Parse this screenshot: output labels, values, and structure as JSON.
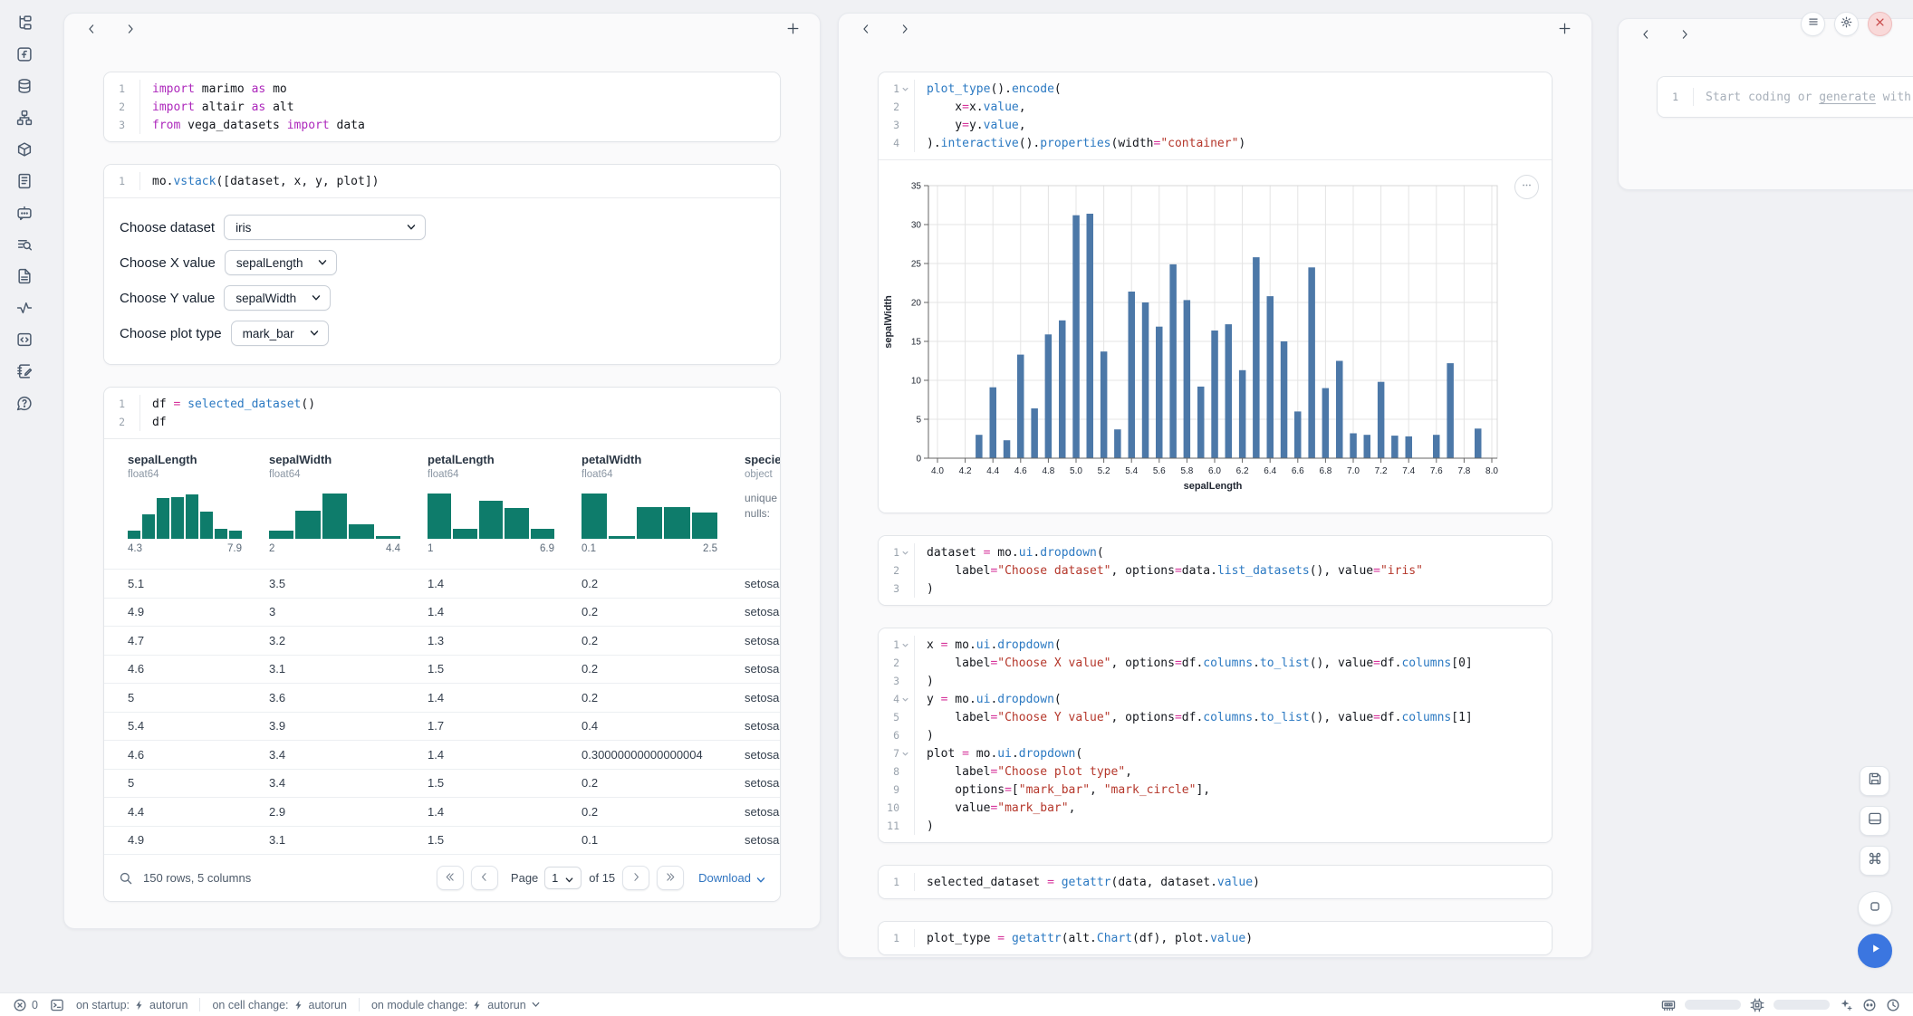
{
  "colors": {
    "accent_blue": "#2b79c2",
    "keyword_purple": "#ad28bc",
    "operator_pink": "#d6359b",
    "string_red": "#b5372b",
    "hist_teal": "#0e7c6b",
    "bar_blue": "#4c78a8",
    "link_blue": "#2f74c0",
    "meter_blue": "#2166e8",
    "close_red": "#c84848"
  },
  "sidebar": {
    "items": [
      {
        "name": "file-explorer",
        "icon": "tree"
      },
      {
        "name": "variables",
        "icon": "function"
      },
      {
        "name": "data-sources",
        "icon": "database"
      },
      {
        "name": "dependency-graph",
        "icon": "network"
      },
      {
        "name": "packages",
        "icon": "package"
      },
      {
        "name": "logs",
        "icon": "logs"
      },
      {
        "name": "ai-chat",
        "icon": "chat-bot"
      },
      {
        "name": "outline",
        "icon": "list-search"
      },
      {
        "name": "documentation",
        "icon": "file-text"
      },
      {
        "name": "tracing",
        "icon": "activity"
      },
      {
        "name": "snippets",
        "icon": "code-square"
      },
      {
        "name": "scratchpad",
        "icon": "notebook-pen"
      },
      {
        "name": "help",
        "icon": "help-circle"
      }
    ]
  },
  "cells": {
    "imports": {
      "folds": [],
      "lines": [
        [
          [
            "import",
            "kw"
          ],
          [
            " marimo ",
            "pl"
          ],
          [
            "as",
            "kw"
          ],
          [
            " mo",
            "pl"
          ]
        ],
        [
          [
            "import",
            "kw"
          ],
          [
            " altair ",
            "pl"
          ],
          [
            "as",
            "kw"
          ],
          [
            " alt",
            "pl"
          ]
        ],
        [
          [
            "from",
            "kw"
          ],
          [
            " vega_datasets ",
            "pl"
          ],
          [
            "import",
            "kw"
          ],
          [
            " data",
            "pl"
          ]
        ]
      ]
    },
    "vstack": {
      "folds": [],
      "lines": [
        [
          [
            "mo.",
            "pl"
          ],
          [
            "vstack",
            "fn"
          ],
          [
            "([dataset, x, y, plot])",
            "pl"
          ]
        ]
      ]
    },
    "df": {
      "folds": [],
      "lines": [
        [
          [
            "df ",
            "pl"
          ],
          [
            "=",
            "op"
          ],
          [
            " ",
            "pl"
          ],
          [
            "selected_dataset",
            "fn"
          ],
          [
            "()",
            "pl"
          ]
        ],
        [
          [
            "df",
            "pl"
          ]
        ]
      ]
    },
    "plot_cell": {
      "folds": [
        1
      ],
      "lines": [
        [
          [
            "plot_type",
            "fn"
          ],
          [
            "().",
            "pl"
          ],
          [
            "encode",
            "fn"
          ],
          [
            "(",
            "pl"
          ]
        ],
        [
          [
            "    x",
            "pl"
          ],
          [
            "=",
            "op"
          ],
          [
            "x.",
            "pl"
          ],
          [
            "value",
            "fn"
          ],
          [
            ",",
            "pl"
          ]
        ],
        [
          [
            "    y",
            "pl"
          ],
          [
            "=",
            "op"
          ],
          [
            "y.",
            "pl"
          ],
          [
            "value",
            "fn"
          ],
          [
            ",",
            "pl"
          ]
        ],
        [
          [
            ").",
            "pl"
          ],
          [
            "interactive",
            "fn"
          ],
          [
            "().",
            "pl"
          ],
          [
            "properties",
            "fn"
          ],
          [
            "(width",
            "pl"
          ],
          [
            "=",
            "op"
          ],
          [
            "\"container\"",
            "str"
          ],
          [
            ")",
            "pl"
          ]
        ]
      ]
    },
    "dataset_cell": {
      "folds": [
        1
      ],
      "lines": [
        [
          [
            "dataset ",
            "pl"
          ],
          [
            "=",
            "op"
          ],
          [
            " mo.",
            "pl"
          ],
          [
            "ui",
            "fn"
          ],
          [
            ".",
            "pl"
          ],
          [
            "dropdown",
            "fn"
          ],
          [
            "(",
            "pl"
          ]
        ],
        [
          [
            "    label",
            "pl"
          ],
          [
            "=",
            "op"
          ],
          [
            "\"Choose dataset\"",
            "str"
          ],
          [
            ", options",
            "pl"
          ],
          [
            "=",
            "op"
          ],
          [
            "data.",
            "pl"
          ],
          [
            "list_datasets",
            "fn"
          ],
          [
            "(), value",
            "pl"
          ],
          [
            "=",
            "op"
          ],
          [
            "\"iris\"",
            "str"
          ]
        ],
        [
          [
            ")",
            "pl"
          ]
        ]
      ]
    },
    "controls_cell": {
      "folds": [
        1,
        4,
        7
      ],
      "lines": [
        [
          [
            "x ",
            "pl"
          ],
          [
            "=",
            "op"
          ],
          [
            " mo.",
            "pl"
          ],
          [
            "ui",
            "fn"
          ],
          [
            ".",
            "pl"
          ],
          [
            "dropdown",
            "fn"
          ],
          [
            "(",
            "pl"
          ]
        ],
        [
          [
            "    label",
            "pl"
          ],
          [
            "=",
            "op"
          ],
          [
            "\"Choose X value\"",
            "str"
          ],
          [
            ", options",
            "pl"
          ],
          [
            "=",
            "op"
          ],
          [
            "df.",
            "pl"
          ],
          [
            "columns",
            "fn"
          ],
          [
            ".",
            "pl"
          ],
          [
            "to_list",
            "fn"
          ],
          [
            "(), value",
            "pl"
          ],
          [
            "=",
            "op"
          ],
          [
            "df.",
            "pl"
          ],
          [
            "columns",
            "fn"
          ],
          [
            "[0]",
            "pl"
          ]
        ],
        [
          [
            ")",
            "pl"
          ]
        ],
        [
          [
            "y ",
            "pl"
          ],
          [
            "=",
            "op"
          ],
          [
            " mo.",
            "pl"
          ],
          [
            "ui",
            "fn"
          ],
          [
            ".",
            "pl"
          ],
          [
            "dropdown",
            "fn"
          ],
          [
            "(",
            "pl"
          ]
        ],
        [
          [
            "    label",
            "pl"
          ],
          [
            "=",
            "op"
          ],
          [
            "\"Choose Y value\"",
            "str"
          ],
          [
            ", options",
            "pl"
          ],
          [
            "=",
            "op"
          ],
          [
            "df.",
            "pl"
          ],
          [
            "columns",
            "fn"
          ],
          [
            ".",
            "pl"
          ],
          [
            "to_list",
            "fn"
          ],
          [
            "(), value",
            "pl"
          ],
          [
            "=",
            "op"
          ],
          [
            "df.",
            "pl"
          ],
          [
            "columns",
            "fn"
          ],
          [
            "[1]",
            "pl"
          ]
        ],
        [
          [
            ")",
            "pl"
          ]
        ],
        [
          [
            "plot ",
            "pl"
          ],
          [
            "=",
            "op"
          ],
          [
            " mo.",
            "pl"
          ],
          [
            "ui",
            "fn"
          ],
          [
            ".",
            "pl"
          ],
          [
            "dropdown",
            "fn"
          ],
          [
            "(",
            "pl"
          ]
        ],
        [
          [
            "    label",
            "pl"
          ],
          [
            "=",
            "op"
          ],
          [
            "\"Choose plot type\"",
            "str"
          ],
          [
            ",",
            "pl"
          ]
        ],
        [
          [
            "    options",
            "pl"
          ],
          [
            "=",
            "op"
          ],
          [
            "[",
            "pl"
          ],
          [
            "\"mark_bar\"",
            "str"
          ],
          [
            ", ",
            "pl"
          ],
          [
            "\"mark_circle\"",
            "str"
          ],
          [
            "],",
            "pl"
          ]
        ],
        [
          [
            "    value",
            "pl"
          ],
          [
            "=",
            "op"
          ],
          [
            "\"mark_bar\"",
            "str"
          ],
          [
            ",",
            "pl"
          ]
        ],
        [
          [
            ")",
            "pl"
          ]
        ]
      ]
    },
    "selected_cell": {
      "folds": [],
      "lines": [
        [
          [
            "selected_dataset ",
            "pl"
          ],
          [
            "=",
            "op"
          ],
          [
            " ",
            "pl"
          ],
          [
            "getattr",
            "fn"
          ],
          [
            "(data, dataset.",
            "pl"
          ],
          [
            "value",
            "fn"
          ],
          [
            ")",
            "pl"
          ]
        ]
      ]
    },
    "plot_type_cell": {
      "folds": [],
      "lines": [
        [
          [
            "plot_type ",
            "pl"
          ],
          [
            "=",
            "op"
          ],
          [
            " ",
            "pl"
          ],
          [
            "getattr",
            "fn"
          ],
          [
            "(alt.",
            "pl"
          ],
          [
            "Chart",
            "fn"
          ],
          [
            "(df), plot.",
            "pl"
          ],
          [
            "value",
            "fn"
          ],
          [
            ")",
            "pl"
          ]
        ]
      ]
    }
  },
  "dropdown_controls": [
    {
      "label": "Choose dataset",
      "value": "iris",
      "wide": true
    },
    {
      "label": "Choose X value",
      "value": "sepalLength",
      "wide": false
    },
    {
      "label": "Choose Y value",
      "value": "sepalWidth",
      "wide": false
    },
    {
      "label": "Choose plot type",
      "value": "mark_bar",
      "wide": false
    }
  ],
  "table": {
    "columns": [
      {
        "name": "sepalLength",
        "dtype": "float64",
        "hist": [
          0.16,
          0.5,
          0.84,
          0.86,
          0.9,
          0.56,
          0.2,
          0.17
        ],
        "min": "4.3",
        "max": "7.9"
      },
      {
        "name": "sepalWidth",
        "dtype": "float64",
        "hist": [
          0.16,
          0.58,
          0.92,
          0.3,
          0.06
        ],
        "min": "2",
        "max": "4.4"
      },
      {
        "name": "petalLength",
        "dtype": "float64",
        "hist": [
          0.93,
          0.2,
          0.77,
          0.63,
          0.2
        ],
        "min": "1",
        "max": "6.9"
      },
      {
        "name": "petalWidth",
        "dtype": "float64",
        "hist": [
          0.92,
          0.05,
          0.65,
          0.64,
          0.54
        ],
        "min": "0.1",
        "max": "2.5"
      },
      {
        "name": "species",
        "dtype": "object",
        "meta": [
          "unique",
          "nulls:"
        ]
      }
    ],
    "rows": [
      [
        "5.1",
        "3.5",
        "1.4",
        "0.2",
        "setosa"
      ],
      [
        "4.9",
        "3",
        "1.4",
        "0.2",
        "setosa"
      ],
      [
        "4.7",
        "3.2",
        "1.3",
        "0.2",
        "setosa"
      ],
      [
        "4.6",
        "3.1",
        "1.5",
        "0.2",
        "setosa"
      ],
      [
        "5",
        "3.6",
        "1.4",
        "0.2",
        "setosa"
      ],
      [
        "5.4",
        "3.9",
        "1.7",
        "0.4",
        "setosa"
      ],
      [
        "4.6",
        "3.4",
        "1.4",
        "0.30000000000000004",
        "setosa"
      ],
      [
        "5",
        "3.4",
        "1.5",
        "0.2",
        "setosa"
      ],
      [
        "4.4",
        "2.9",
        "1.4",
        "0.2",
        "setosa"
      ],
      [
        "4.9",
        "3.1",
        "1.5",
        "0.1",
        "setosa"
      ]
    ],
    "footer": {
      "summary": "150 rows, 5 columns",
      "page_label": "Page",
      "page_value": "1",
      "of_label": "of 15",
      "download_label": "Download"
    }
  },
  "chart_data": {
    "type": "bar",
    "title": "",
    "xlabel": "sepalLength",
    "ylabel": "sepalWidth",
    "xlim": [
      4.0,
      8.0
    ],
    "ylim": [
      0,
      35
    ],
    "grid": true,
    "bar_color": "#4c78a8",
    "x_tick_labels": [
      "4.0",
      "4.2",
      "4.4",
      "4.6",
      "4.8",
      "5.0",
      "5.2",
      "5.4",
      "5.6",
      "5.8",
      "6.0",
      "6.2",
      "6.4",
      "6.6",
      "6.8",
      "7.0",
      "7.2",
      "7.4",
      "7.6",
      "7.8",
      "8.0"
    ],
    "y_ticks": [
      0,
      5,
      10,
      15,
      20,
      25,
      30,
      35
    ],
    "x": [
      4.3,
      4.4,
      4.5,
      4.6,
      4.7,
      4.8,
      4.9,
      5.0,
      5.1,
      5.2,
      5.3,
      5.4,
      5.5,
      5.6,
      5.7,
      5.8,
      5.9,
      6.0,
      6.1,
      6.2,
      6.3,
      6.4,
      6.5,
      6.6,
      6.7,
      6.8,
      6.9,
      7.0,
      7.1,
      7.2,
      7.3,
      7.4,
      7.6,
      7.7,
      7.9
    ],
    "y": [
      3.0,
      9.1,
      2.3,
      13.3,
      6.4,
      15.9,
      17.7,
      31.2,
      31.4,
      13.7,
      3.7,
      21.4,
      20.0,
      16.9,
      24.9,
      20.3,
      9.2,
      16.4,
      17.2,
      11.3,
      25.8,
      20.8,
      15.0,
      6.0,
      24.5,
      9.0,
      12.5,
      3.2,
      3.0,
      9.8,
      2.9,
      2.8,
      3.0,
      12.2,
      3.8
    ]
  },
  "scratch": {
    "line_number": "1",
    "placeholder_prefix": "Start coding or ",
    "placeholder_link": "generate",
    "placeholder_suffix": " with AI"
  },
  "status_bar": {
    "error_count": "0",
    "groups": [
      {
        "label": "on startup:",
        "value": "autorun",
        "chevron": false
      },
      {
        "label": "on cell change:",
        "value": "autorun",
        "chevron": false
      },
      {
        "label": "on module change:",
        "value": "autorun",
        "chevron": true
      }
    ],
    "resources": {
      "ram_fill": 0.85,
      "cpu_fill": 0.2
    }
  }
}
